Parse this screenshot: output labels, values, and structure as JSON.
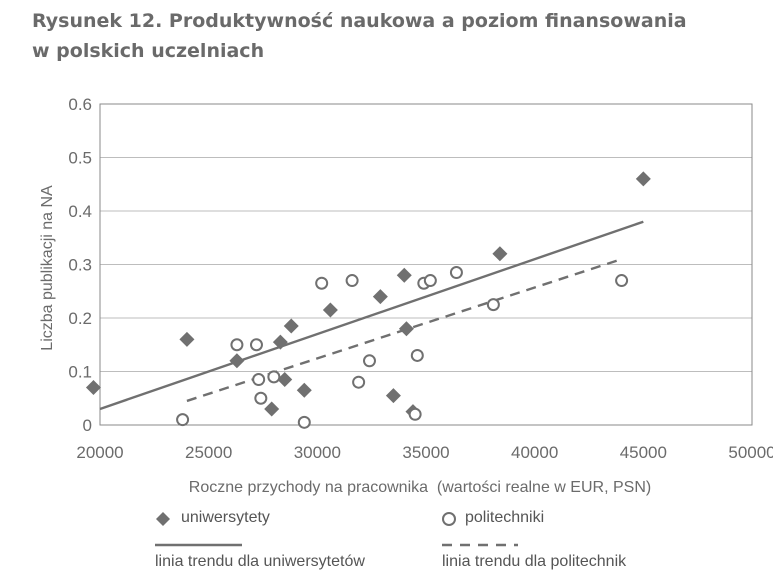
{
  "figure": {
    "title_line1": "Rysunek 12. Produktywność naukowa a poziom finansowania",
    "title_line2": "w polskich uczelniach"
  },
  "chart_data": {
    "type": "scatter",
    "xlabel": "Roczne przychody na pracownika  (wartości realne w EUR, PSN)",
    "ylabel": "Liczba publikacji na NA",
    "xlim": [
      20000,
      50000
    ],
    "ylim": [
      0,
      0.6
    ],
    "x_ticks": [
      "20000",
      "25000",
      "30000",
      "35000",
      "40000",
      "45000",
      "50000"
    ],
    "y_ticks": [
      "0",
      "0.1",
      "0.2",
      "0.3",
      "0.4",
      "0.5",
      "0.6"
    ],
    "grid": "horizontal",
    "legend_position": "bottom",
    "colors": {
      "series": "#707070",
      "grid": "#bdbdbd",
      "axis": "#8a8a8a"
    },
    "series": [
      {
        "name": "uniwersytety",
        "marker": "diamond",
        "points": [
          [
            19700,
            0.07
          ],
          [
            24000,
            0.16
          ],
          [
            26300,
            0.12
          ],
          [
            27900,
            0.03
          ],
          [
            28300,
            0.155
          ],
          [
            28500,
            0.085
          ],
          [
            28800,
            0.185
          ],
          [
            29400,
            0.065
          ],
          [
            30600,
            0.215
          ],
          [
            32900,
            0.24
          ],
          [
            33500,
            0.055
          ],
          [
            34000,
            0.28
          ],
          [
            34100,
            0.18
          ],
          [
            34400,
            0.025
          ],
          [
            38400,
            0.32
          ],
          [
            45000,
            0.46
          ]
        ]
      },
      {
        "name": "politechniki",
        "marker": "circle",
        "points": [
          [
            23800,
            0.01
          ],
          [
            26300,
            0.15
          ],
          [
            27200,
            0.15
          ],
          [
            27300,
            0.085
          ],
          [
            27400,
            0.05
          ],
          [
            28000,
            0.09
          ],
          [
            29400,
            0.005
          ],
          [
            30200,
            0.265
          ],
          [
            31600,
            0.27
          ],
          [
            31900,
            0.08
          ],
          [
            32400,
            0.12
          ],
          [
            34500,
            0.02
          ],
          [
            34600,
            0.13
          ],
          [
            34900,
            0.265
          ],
          [
            35200,
            0.27
          ],
          [
            36400,
            0.285
          ],
          [
            38100,
            0.225
          ],
          [
            44000,
            0.27
          ]
        ]
      }
    ],
    "trendlines": [
      {
        "name": "linia trendu dla uniwersytetów",
        "style": "solid",
        "x": [
          20000,
          45000
        ],
        "y": [
          0.03,
          0.38
        ]
      },
      {
        "name": "linia trendu dla politechnik",
        "style": "dashed",
        "x": [
          24000,
          44000
        ],
        "y": [
          0.045,
          0.31
        ]
      }
    ]
  }
}
